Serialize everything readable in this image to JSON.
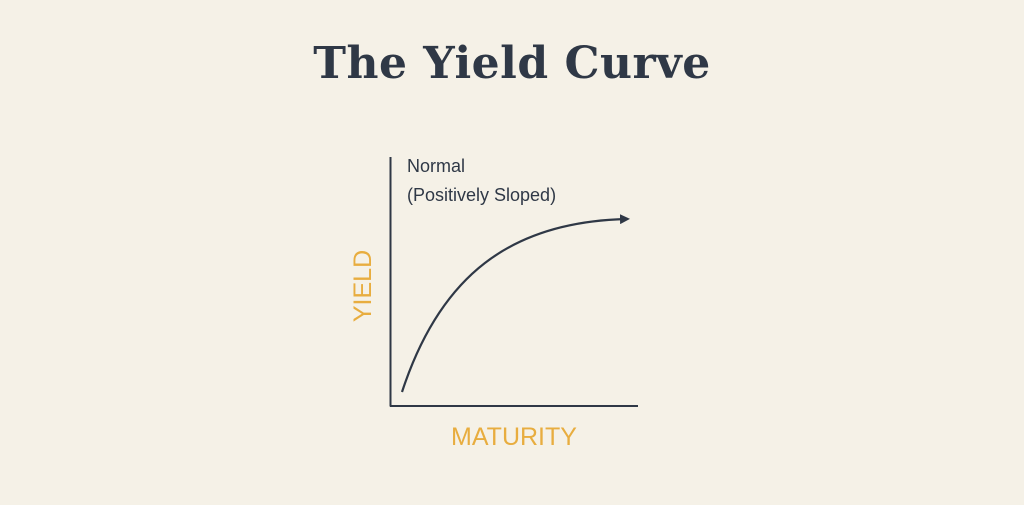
{
  "title": "The Yield Curve",
  "curve": {
    "label_line1": "Normal",
    "label_line2": "(Positively Sloped)"
  },
  "axes": {
    "x_label": "MATURITY",
    "y_label": "YIELD"
  },
  "colors": {
    "background": "#f5f1e7",
    "ink": "#2f3846",
    "accent": "#e8ad3f"
  }
}
